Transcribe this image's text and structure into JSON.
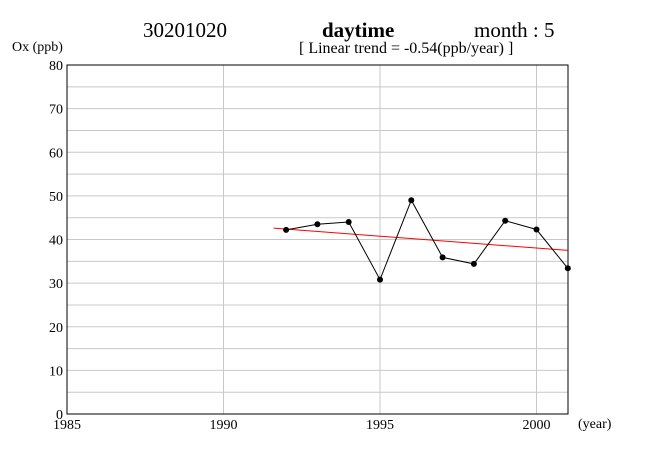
{
  "header": {
    "station": "30201020",
    "period": "daytime",
    "month": "month : 5",
    "trend": "[ Linear trend = -0.54(ppb/year) ]"
  },
  "chart_data": {
    "type": "line",
    "ylabel": "Ox (ppb)",
    "xlabel": "(year)",
    "xlim": [
      1985,
      2001
    ],
    "ylim": [
      0,
      80
    ],
    "x_ticks": [
      1985,
      1990,
      1995,
      2000
    ],
    "y_ticks": [
      0,
      10,
      20,
      30,
      40,
      50,
      60,
      70,
      80
    ],
    "grid": true,
    "series": [
      {
        "x": [
          1992,
          1993,
          1994,
          1995,
          1996,
          1997,
          1998,
          1999,
          2000,
          2001
        ],
        "values": [
          42.2,
          43.5,
          44.0,
          30.8,
          49.0,
          35.9,
          34.4,
          44.3,
          42.3,
          33.4
        ],
        "color": "#000000"
      }
    ],
    "trend_line": {
      "x": [
        1991.6,
        2001
      ],
      "values": [
        42.6,
        37.5
      ],
      "color": "#ff0000"
    }
  }
}
